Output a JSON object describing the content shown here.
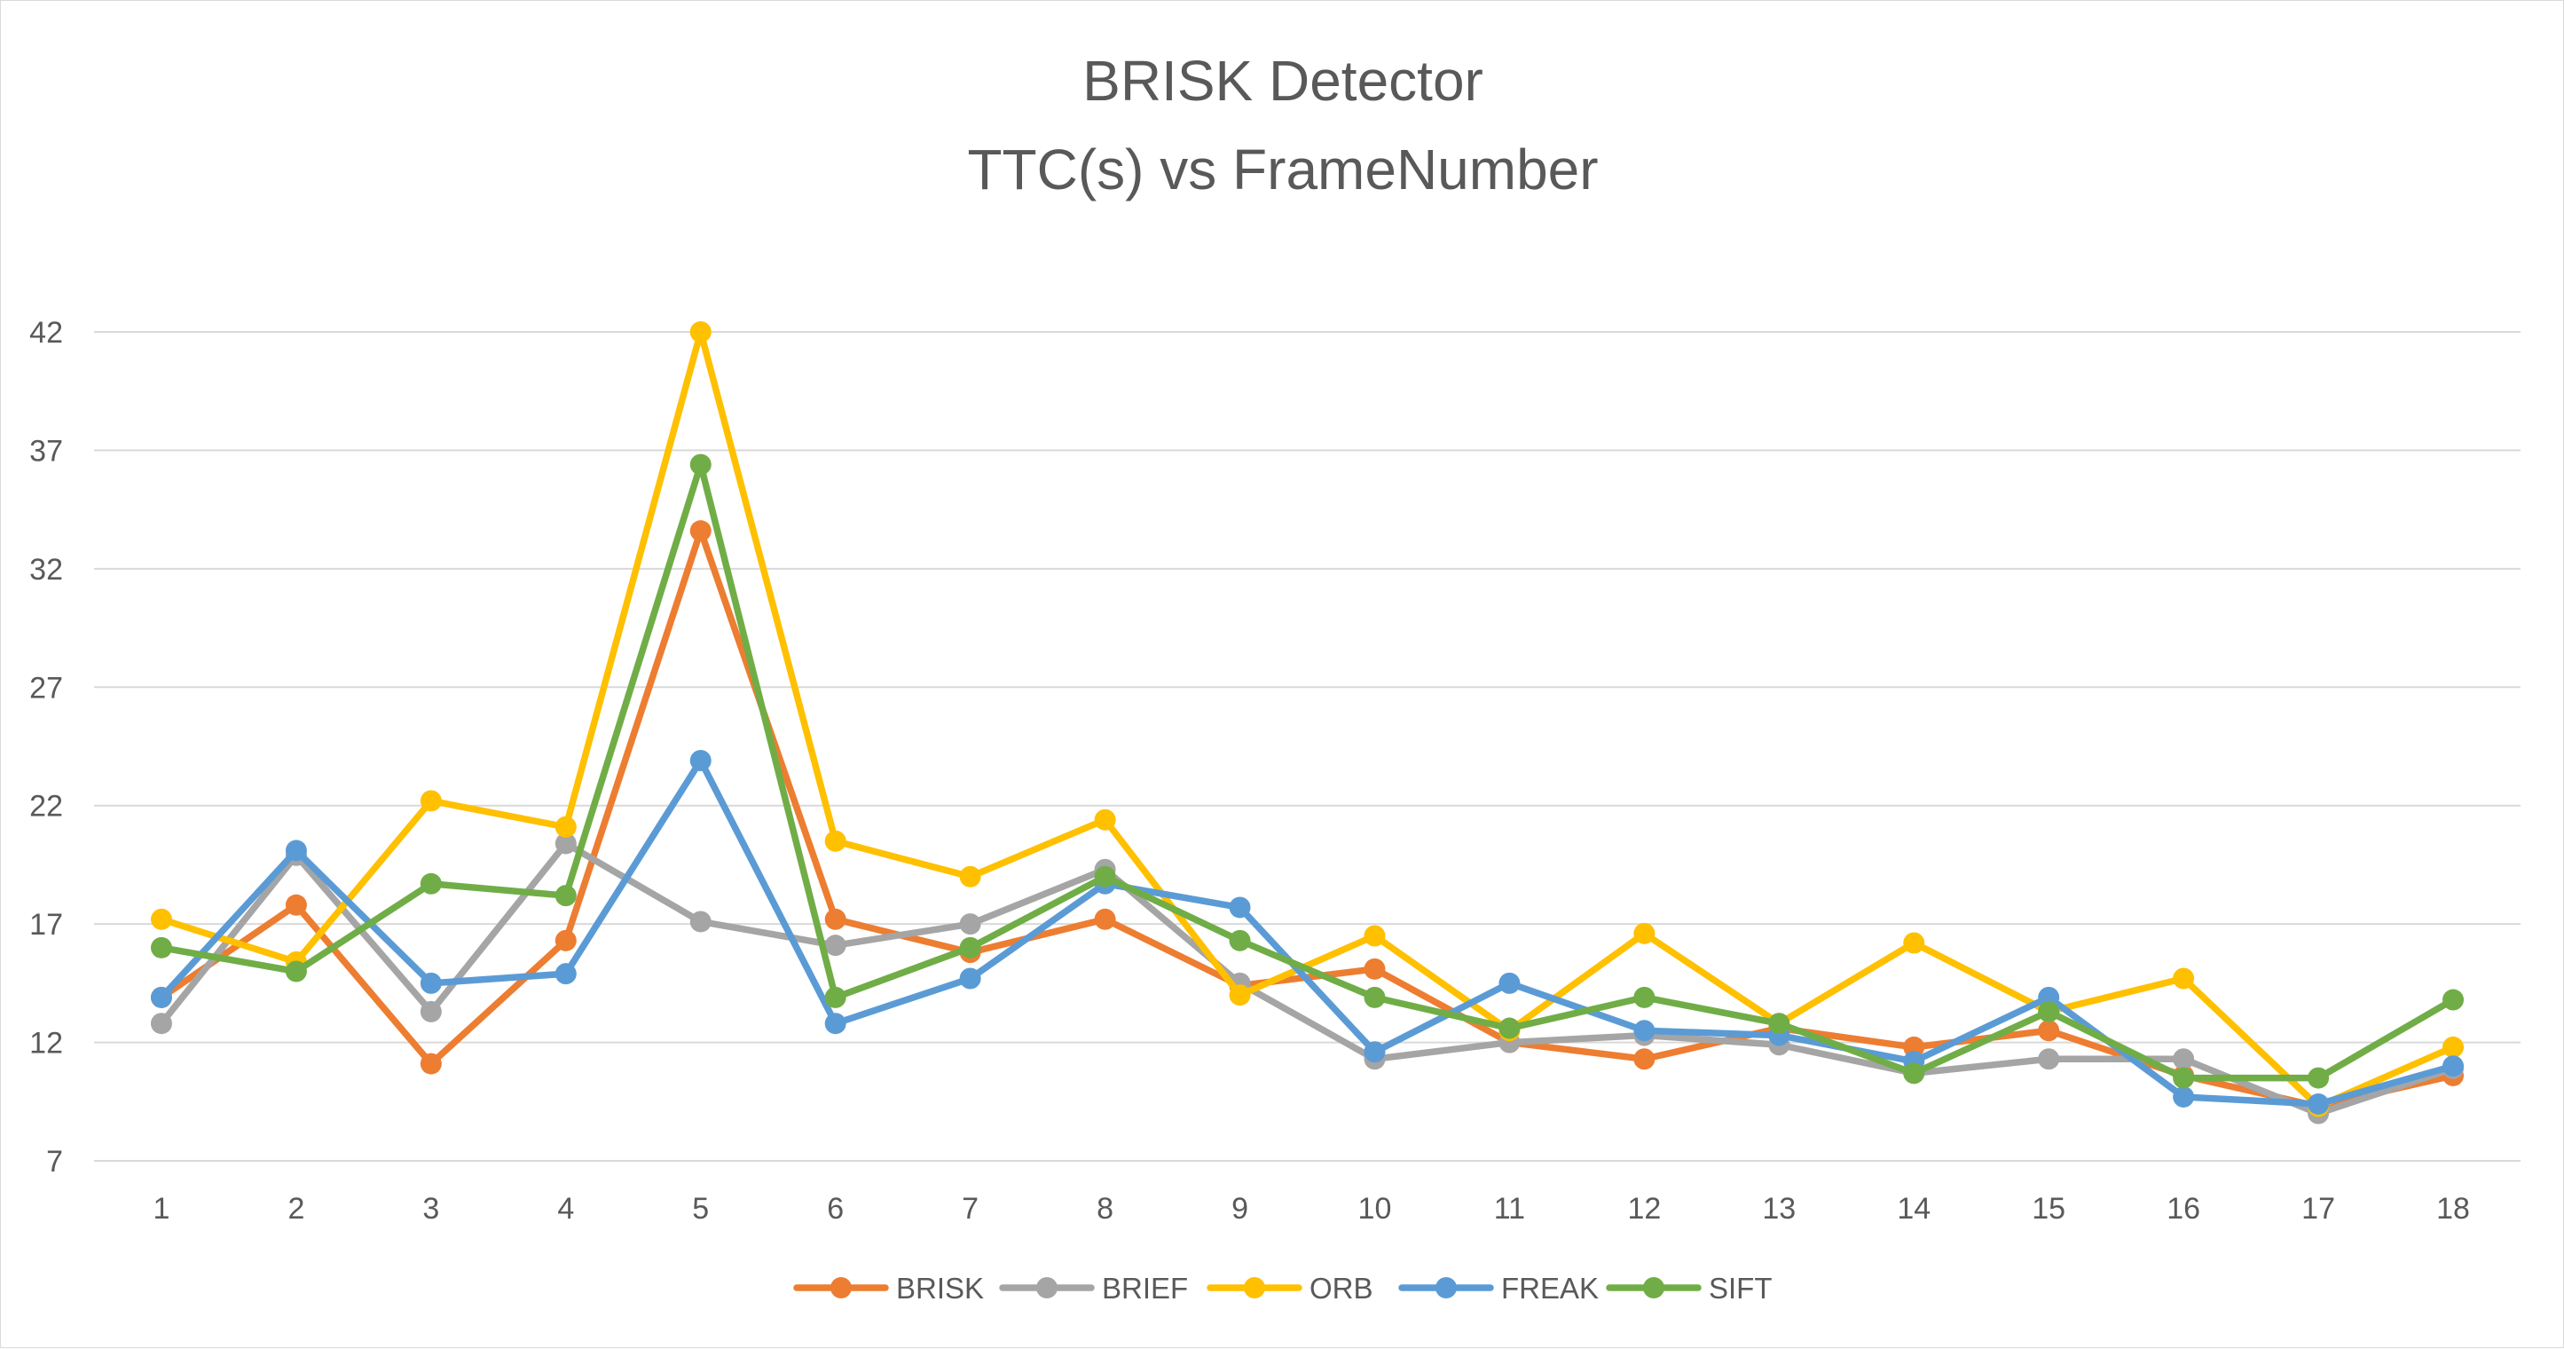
{
  "chart_data": {
    "type": "line",
    "title": [
      "BRISK Detector",
      "TTC(s) vs FrameNumber"
    ],
    "xlabel": "",
    "ylabel": "",
    "categories": [
      "1",
      "2",
      "3",
      "4",
      "5",
      "6",
      "7",
      "8",
      "9",
      "10",
      "11",
      "12",
      "13",
      "14",
      "15",
      "16",
      "17",
      "18"
    ],
    "yticks": [
      7,
      12,
      17,
      22,
      27,
      32,
      37,
      42
    ],
    "ylim": [
      7,
      42
    ],
    "grid": "horizontal",
    "legend_position": "bottom",
    "series": [
      {
        "name": "BRISK",
        "color": "#ED7D31",
        "values": [
          13.9,
          17.8,
          11.1,
          16.3,
          33.6,
          17.2,
          15.8,
          17.2,
          14.4,
          15.1,
          12.0,
          11.3,
          12.6,
          11.8,
          12.5,
          10.6,
          9.3,
          10.6
        ]
      },
      {
        "name": "BRIEF",
        "color": "#A5A5A5",
        "values": [
          12.8,
          19.9,
          13.3,
          20.4,
          17.1,
          16.1,
          17.0,
          19.3,
          14.5,
          11.3,
          12.0,
          12.3,
          11.9,
          10.7,
          11.3,
          11.3,
          9.0,
          10.9
        ]
      },
      {
        "name": "ORB",
        "color": "#FFC000",
        "values": [
          17.2,
          15.4,
          22.2,
          21.1,
          42.0,
          20.5,
          19.0,
          21.4,
          14.0,
          16.5,
          12.5,
          16.6,
          12.8,
          16.2,
          13.3,
          14.7,
          9.3,
          11.8
        ]
      },
      {
        "name": "FREAK",
        "color": "#5B9BD5",
        "values": [
          13.9,
          20.1,
          14.5,
          14.9,
          23.9,
          12.8,
          14.7,
          18.7,
          17.7,
          11.6,
          14.5,
          12.5,
          12.3,
          11.2,
          13.9,
          9.7,
          9.4,
          11.0
        ]
      },
      {
        "name": "SIFT",
        "color": "#70AD47",
        "values": [
          16.0,
          15.0,
          18.7,
          18.2,
          36.4,
          13.9,
          16.0,
          19.0,
          16.3,
          13.9,
          12.6,
          13.9,
          12.8,
          10.7,
          13.3,
          10.5,
          10.5,
          13.8
        ]
      }
    ]
  }
}
